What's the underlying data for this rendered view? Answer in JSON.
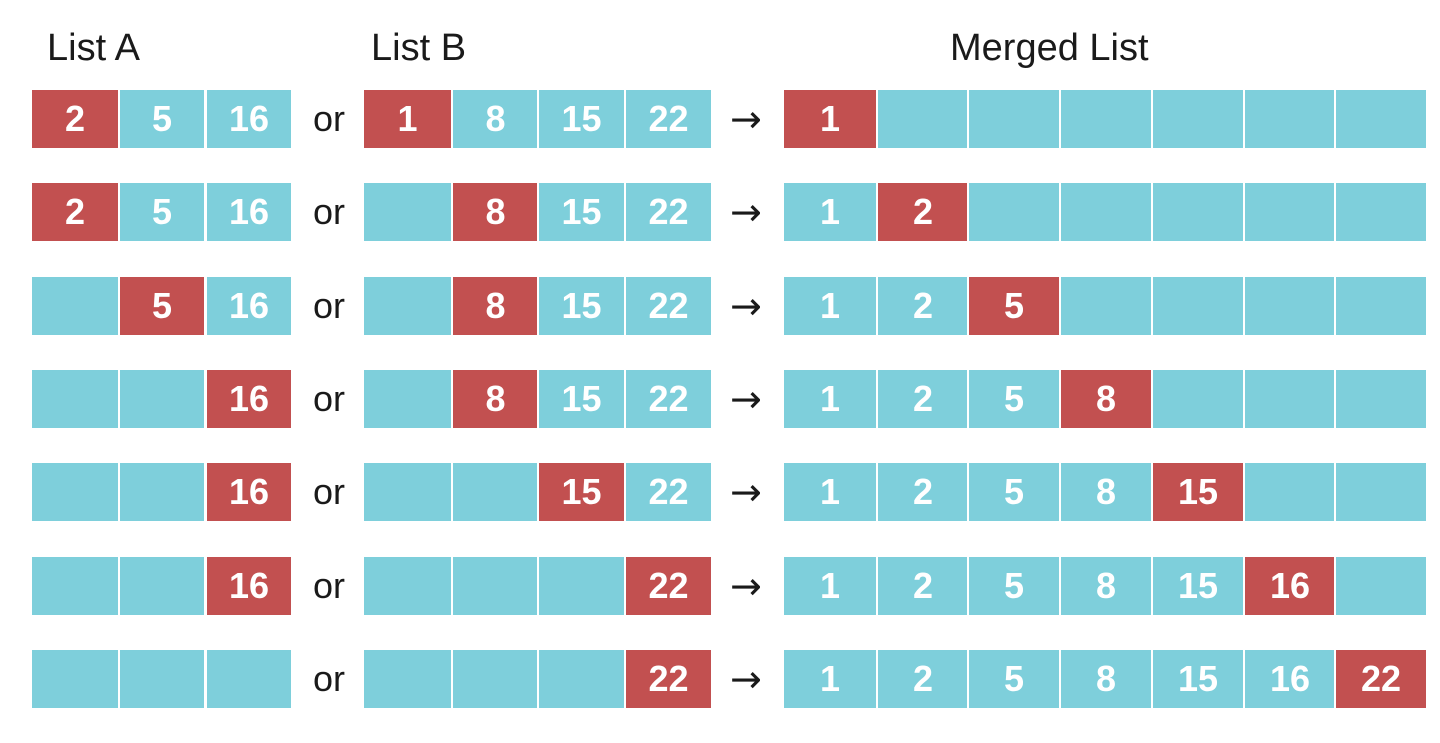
{
  "headers": {
    "list_a": "List A",
    "list_b": "List B",
    "merged": "Merged List"
  },
  "connector_text": "or",
  "arrow_symbol": "→",
  "colors": {
    "teal": "#7ecfdb",
    "red": "#c25050"
  },
  "steps": [
    {
      "list_a": [
        {
          "v": "2",
          "red": true
        },
        {
          "v": "5",
          "red": false
        },
        {
          "v": "16",
          "red": false
        }
      ],
      "list_b": [
        {
          "v": "1",
          "red": true
        },
        {
          "v": "8",
          "red": false
        },
        {
          "v": "15",
          "red": false
        },
        {
          "v": "22",
          "red": false
        }
      ],
      "merged": [
        {
          "v": "1",
          "red": true
        },
        {
          "v": "",
          "red": false
        },
        {
          "v": "",
          "red": false
        },
        {
          "v": "",
          "red": false
        },
        {
          "v": "",
          "red": false
        },
        {
          "v": "",
          "red": false
        },
        {
          "v": "",
          "red": false
        }
      ]
    },
    {
      "list_a": [
        {
          "v": "2",
          "red": true
        },
        {
          "v": "5",
          "red": false
        },
        {
          "v": "16",
          "red": false
        }
      ],
      "list_b": [
        {
          "v": "",
          "red": false
        },
        {
          "v": "8",
          "red": true
        },
        {
          "v": "15",
          "red": false
        },
        {
          "v": "22",
          "red": false
        }
      ],
      "merged": [
        {
          "v": "1",
          "red": false
        },
        {
          "v": "2",
          "red": true
        },
        {
          "v": "",
          "red": false
        },
        {
          "v": "",
          "red": false
        },
        {
          "v": "",
          "red": false
        },
        {
          "v": "",
          "red": false
        },
        {
          "v": "",
          "red": false
        }
      ]
    },
    {
      "list_a": [
        {
          "v": "",
          "red": false
        },
        {
          "v": "5",
          "red": true
        },
        {
          "v": "16",
          "red": false
        }
      ],
      "list_b": [
        {
          "v": "",
          "red": false
        },
        {
          "v": "8",
          "red": true
        },
        {
          "v": "15",
          "red": false
        },
        {
          "v": "22",
          "red": false
        }
      ],
      "merged": [
        {
          "v": "1",
          "red": false
        },
        {
          "v": "2",
          "red": false
        },
        {
          "v": "5",
          "red": true
        },
        {
          "v": "",
          "red": false
        },
        {
          "v": "",
          "red": false
        },
        {
          "v": "",
          "red": false
        },
        {
          "v": "",
          "red": false
        }
      ]
    },
    {
      "list_a": [
        {
          "v": "",
          "red": false
        },
        {
          "v": "",
          "red": false
        },
        {
          "v": "16",
          "red": true
        }
      ],
      "list_b": [
        {
          "v": "",
          "red": false
        },
        {
          "v": "8",
          "red": true
        },
        {
          "v": "15",
          "red": false
        },
        {
          "v": "22",
          "red": false
        }
      ],
      "merged": [
        {
          "v": "1",
          "red": false
        },
        {
          "v": "2",
          "red": false
        },
        {
          "v": "5",
          "red": false
        },
        {
          "v": "8",
          "red": true
        },
        {
          "v": "",
          "red": false
        },
        {
          "v": "",
          "red": false
        },
        {
          "v": "",
          "red": false
        }
      ]
    },
    {
      "list_a": [
        {
          "v": "",
          "red": false
        },
        {
          "v": "",
          "red": false
        },
        {
          "v": "16",
          "red": true
        }
      ],
      "list_b": [
        {
          "v": "",
          "red": false
        },
        {
          "v": "",
          "red": false
        },
        {
          "v": "15",
          "red": true
        },
        {
          "v": "22",
          "red": false
        }
      ],
      "merged": [
        {
          "v": "1",
          "red": false
        },
        {
          "v": "2",
          "red": false
        },
        {
          "v": "5",
          "red": false
        },
        {
          "v": "8",
          "red": false
        },
        {
          "v": "15",
          "red": true
        },
        {
          "v": "",
          "red": false
        },
        {
          "v": "",
          "red": false
        }
      ]
    },
    {
      "list_a": [
        {
          "v": "",
          "red": false
        },
        {
          "v": "",
          "red": false
        },
        {
          "v": "16",
          "red": true
        }
      ],
      "list_b": [
        {
          "v": "",
          "red": false
        },
        {
          "v": "",
          "red": false
        },
        {
          "v": "",
          "red": false
        },
        {
          "v": "22",
          "red": true
        }
      ],
      "merged": [
        {
          "v": "1",
          "red": false
        },
        {
          "v": "2",
          "red": false
        },
        {
          "v": "5",
          "red": false
        },
        {
          "v": "8",
          "red": false
        },
        {
          "v": "15",
          "red": false
        },
        {
          "v": "16",
          "red": true
        },
        {
          "v": "",
          "red": false
        }
      ]
    },
    {
      "list_a": [
        {
          "v": "",
          "red": false
        },
        {
          "v": "",
          "red": false
        },
        {
          "v": "",
          "red": false
        }
      ],
      "list_b": [
        {
          "v": "",
          "red": false
        },
        {
          "v": "",
          "red": false
        },
        {
          "v": "",
          "red": false
        },
        {
          "v": "22",
          "red": true
        }
      ],
      "merged": [
        {
          "v": "1",
          "red": false
        },
        {
          "v": "2",
          "red": false
        },
        {
          "v": "5",
          "red": false
        },
        {
          "v": "8",
          "red": false
        },
        {
          "v": "15",
          "red": false
        },
        {
          "v": "16",
          "red": false
        },
        {
          "v": "22",
          "red": true
        }
      ]
    }
  ]
}
